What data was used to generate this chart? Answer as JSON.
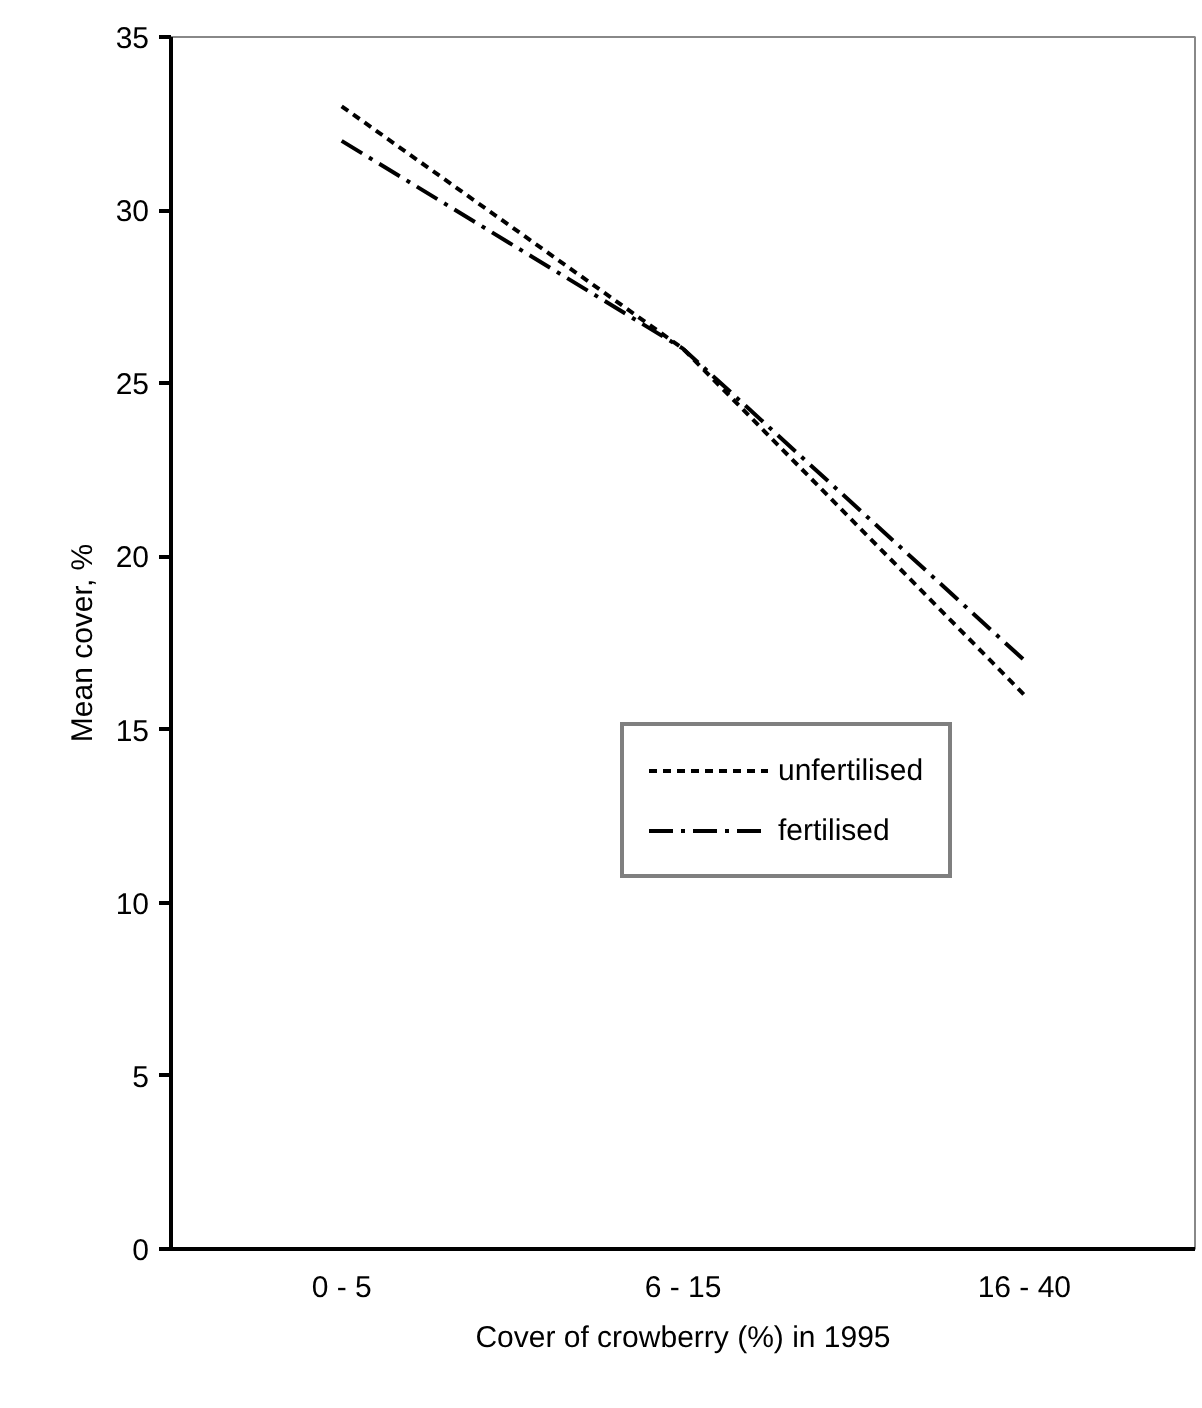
{
  "chart_data": {
    "type": "line",
    "xlabel": "Cover of crowberry (%) in 1995",
    "ylabel": "Mean cover, %",
    "categories": [
      "0 - 5",
      "6 - 15",
      "16 - 40"
    ],
    "series": [
      {
        "name": "unfertilised",
        "color": "#000000",
        "line_style": "dashed",
        "values": [
          33,
          26,
          16
        ]
      },
      {
        "name": "fertilised",
        "color": "#000000",
        "line_style": "dashdot",
        "values": [
          32,
          26,
          17
        ]
      }
    ],
    "ylim": [
      0,
      35
    ],
    "yticks": [
      0,
      5,
      10,
      15,
      20,
      25,
      30,
      35
    ],
    "grid": false,
    "legend": "right",
    "marker": "none"
  }
}
